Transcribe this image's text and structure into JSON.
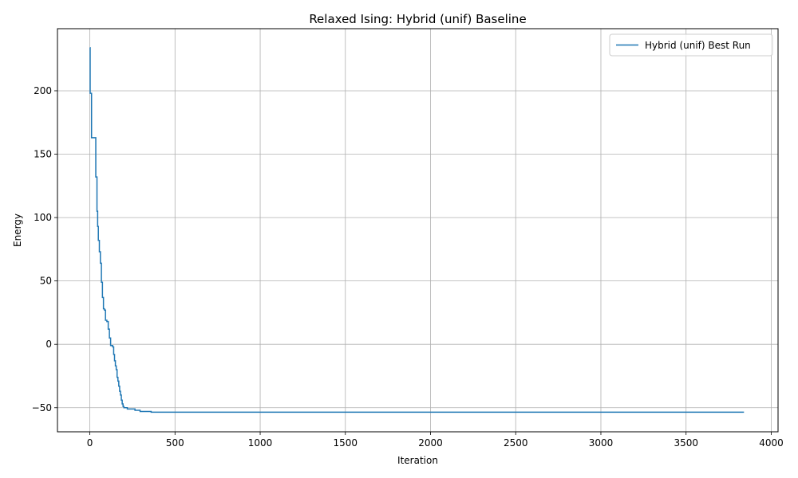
{
  "chart_data": {
    "type": "line",
    "title": "Relaxed Ising: Hybrid (unif) Baseline",
    "xlabel": "Iteration",
    "ylabel": "Energy",
    "xlim": [
      -190,
      4040
    ],
    "ylim": [
      -69,
      249
    ],
    "xticks": [
      0,
      500,
      1000,
      1500,
      2000,
      2500,
      3000,
      3500,
      4000
    ],
    "yticks": [
      -50,
      0,
      50,
      100,
      150,
      200
    ],
    "grid": true,
    "legend_position": "top-right",
    "step": true,
    "series": [
      {
        "name": "Hybrid (unif) Best Run",
        "color": "#1f77b4",
        "x": [
          0,
          2,
          10,
          35,
          42,
          46,
          50,
          56,
          62,
          68,
          74,
          80,
          86,
          92,
          100,
          108,
          115,
          122,
          128,
          134,
          140,
          145,
          150,
          155,
          160,
          165,
          170,
          175,
          180,
          185,
          190,
          195,
          200,
          210,
          220,
          235,
          250,
          265,
          280,
          295,
          310,
          330,
          360,
          400,
          500,
          700,
          1000,
          1500,
          2000,
          2500,
          3000,
          3500,
          3840
        ],
        "y": [
          234,
          198,
          163,
          132,
          105,
          93,
          82,
          73,
          64,
          49,
          37,
          28,
          27,
          19,
          18,
          12,
          5,
          -1,
          -1,
          -2,
          -8,
          -13,
          -17,
          -20,
          -26,
          -29,
          -33,
          -37,
          -40,
          -44,
          -47,
          -49,
          -50,
          -50,
          -51,
          -51,
          -51,
          -52,
          -52,
          -53,
          -53,
          -53,
          -53.5,
          -53.5,
          -53.5,
          -53.5,
          -53.5,
          -53.5,
          -53.5,
          -53.5,
          -53.5,
          -53.5,
          -53.5
        ]
      }
    ]
  }
}
